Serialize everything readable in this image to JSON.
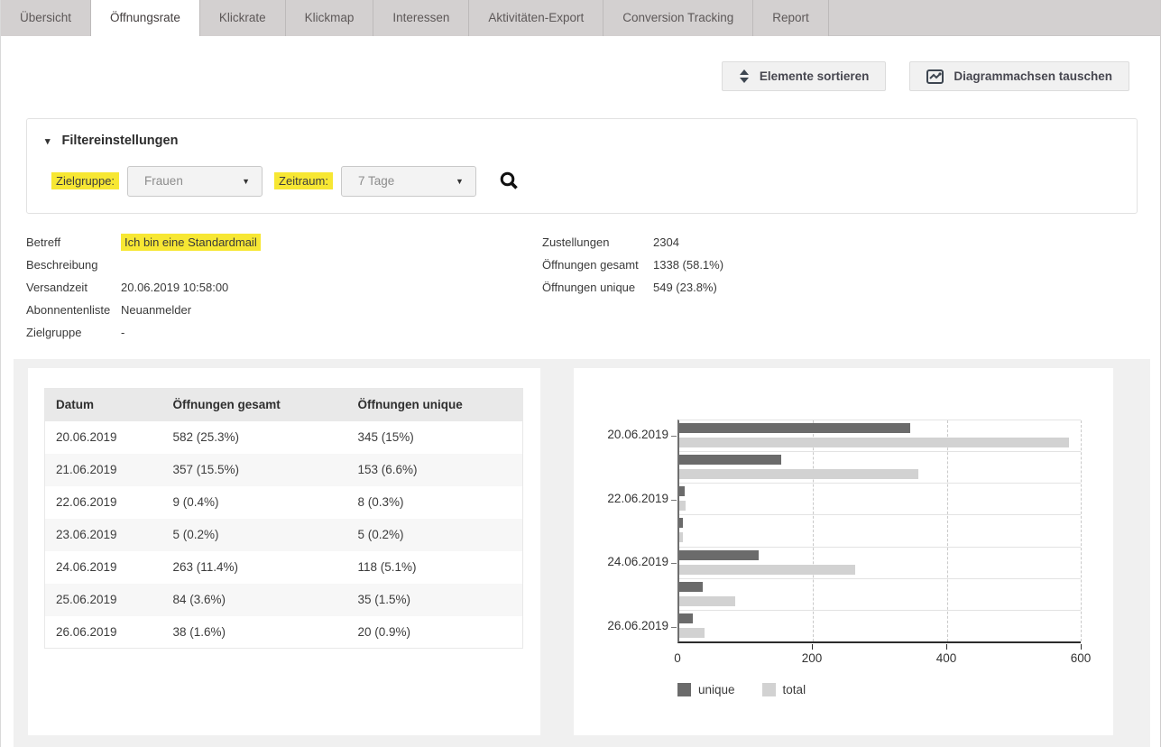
{
  "colors": {
    "highlight": "#f7e733",
    "unique_bar": "#6b6b6b",
    "total_bar": "#d2d2d2",
    "panel_bg": "#f0f0f0",
    "tab_bg": "#d3d0d0"
  },
  "icons": {
    "filter_collapse": "caret-down",
    "dropdown": "caret-down",
    "search": "magnifier",
    "sort": "up-down-arrows",
    "swap": "line-chart"
  },
  "tabs": {
    "items": [
      {
        "label": "Übersicht",
        "active": false
      },
      {
        "label": "Öffnungsrate",
        "active": true
      },
      {
        "label": "Klickrate",
        "active": false
      },
      {
        "label": "Klickmap",
        "active": false
      },
      {
        "label": "Interessen",
        "active": false
      },
      {
        "label": "Aktivitäten-Export",
        "active": false
      },
      {
        "label": "Conversion Tracking",
        "active": false
      },
      {
        "label": "Report",
        "active": false
      }
    ]
  },
  "toolbar": {
    "sort_button": "Elemente sortieren",
    "swap_button": "Diagrammachsen tauschen"
  },
  "filter": {
    "title": "Filtereinstellungen",
    "fields": [
      {
        "label": "Zielgruppe:",
        "value": "Frauen"
      },
      {
        "label": "Zeitraum:",
        "value": "7 Tage"
      }
    ]
  },
  "details": {
    "left": [
      {
        "label": "Betreff",
        "value": "Ich bin eine Standardmail",
        "highlight": true
      },
      {
        "label": "Beschreibung",
        "value": "",
        "highlight": false
      },
      {
        "label": "Versandzeit",
        "value": "20.06.2019 10:58:00",
        "highlight": false
      },
      {
        "label": "Abonnentenliste",
        "value": "Neuanmelder",
        "highlight": false
      },
      {
        "label": "Zielgruppe",
        "value": "-",
        "highlight": false
      }
    ],
    "right": [
      {
        "label": "Zustellungen",
        "value": "2304"
      },
      {
        "label": "Öffnungen gesamt",
        "value": "1338 (58.1%)"
      },
      {
        "label": "Öffnungen unique",
        "value": "549 (23.8%)"
      }
    ]
  },
  "table": {
    "headers": [
      "Datum",
      "Öffnungen gesamt",
      "Öffnungen unique"
    ],
    "rows": [
      [
        "20.06.2019",
        "582 (25.3%)",
        "345 (15%)"
      ],
      [
        "21.06.2019",
        "357 (15.5%)",
        "153 (6.6%)"
      ],
      [
        "22.06.2019",
        "9 (0.4%)",
        "8 (0.3%)"
      ],
      [
        "23.06.2019",
        "5 (0.2%)",
        "5 (0.2%)"
      ],
      [
        "24.06.2019",
        "263 (11.4%)",
        "118 (5.1%)"
      ],
      [
        "25.06.2019",
        "84 (3.6%)",
        "35 (1.5%)"
      ],
      [
        "26.06.2019",
        "38 (1.6%)",
        "20 (0.9%)"
      ]
    ]
  },
  "chart_data": {
    "type": "bar",
    "orientation": "horizontal",
    "categories": [
      "20.06.2019",
      "21.06.2019",
      "22.06.2019",
      "23.06.2019",
      "24.06.2019",
      "25.06.2019",
      "26.06.2019"
    ],
    "series": [
      {
        "name": "unique",
        "color": "#6b6b6b",
        "values": [
          345,
          153,
          8,
          5,
          118,
          35,
          20
        ]
      },
      {
        "name": "total",
        "color": "#d2d2d2",
        "values": [
          582,
          357,
          9,
          5,
          263,
          84,
          38
        ]
      }
    ],
    "x_ticks": [
      0,
      200,
      400,
      600
    ],
    "xlim": [
      0,
      600
    ],
    "y_axis_labels_shown": [
      "20.06.2019",
      "22.06.2019",
      "24.06.2019",
      "26.06.2019"
    ],
    "legend": [
      "unique",
      "total"
    ],
    "legend_position": "bottom",
    "grid": "dashed-vertical"
  }
}
